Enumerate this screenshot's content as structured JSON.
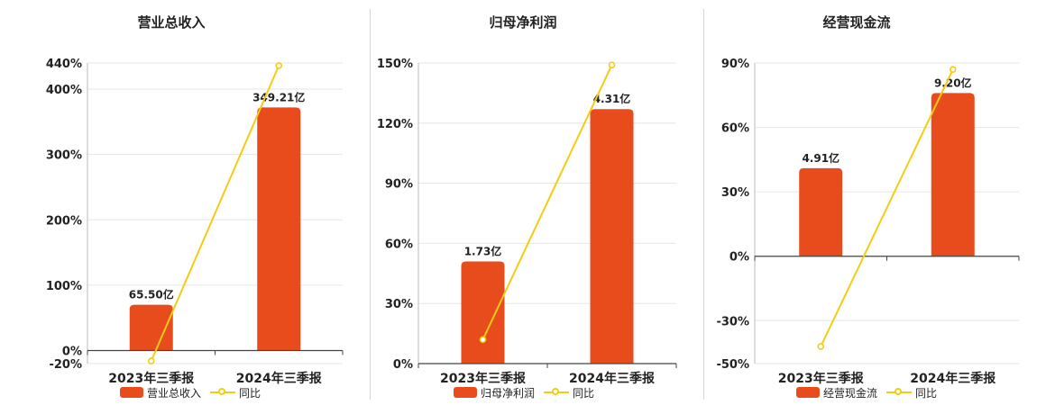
{
  "colors": {
    "bar": "#e84c1c",
    "line": "#f5cc14",
    "grid": "#e6e6e6",
    "axis": "#444444"
  },
  "legend_line_label": "同比",
  "chart_data": [
    {
      "type": "bar",
      "title": "营业总收入",
      "categories": [
        "2023年三季报",
        "2024年三季报"
      ],
      "series": [
        {
          "name": "营业总收入",
          "type": "bar",
          "values": [
            65.5,
            349.21
          ],
          "labels": [
            "65.50亿",
            "349.21亿"
          ]
        },
        {
          "name": "同比",
          "type": "line",
          "values": [
            -16,
            436
          ]
        }
      ],
      "ylim": [
        -20,
        440
      ],
      "yticks": [
        -20,
        0,
        100,
        200,
        300,
        400,
        440
      ],
      "ytick_labels": [
        "-20%",
        "0%",
        "100%",
        "200%",
        "300%",
        "400%",
        "440%"
      ],
      "bar_values_on_axis": [
        70,
        372
      ]
    },
    {
      "type": "bar",
      "title": "归母净利润",
      "categories": [
        "2023年三季报",
        "2024年三季报"
      ],
      "series": [
        {
          "name": "归母净利润",
          "type": "bar",
          "values": [
            1.73,
            4.31
          ],
          "labels": [
            "1.73亿",
            "4.31亿"
          ]
        },
        {
          "name": "同比",
          "type": "line",
          "values": [
            12,
            149
          ]
        }
      ],
      "ylim": [
        0,
        150
      ],
      "yticks": [
        0,
        30,
        60,
        90,
        120,
        150
      ],
      "ytick_labels": [
        "0%",
        "30%",
        "60%",
        "90%",
        "120%",
        "150%"
      ],
      "bar_values_on_axis": [
        51,
        127
      ]
    },
    {
      "type": "bar",
      "title": "经营现金流",
      "categories": [
        "2023年三季报",
        "2024年三季报"
      ],
      "series": [
        {
          "name": "经营现金流",
          "type": "bar",
          "values": [
            4.91,
            9.2
          ],
          "labels": [
            "4.91亿",
            "9.20亿"
          ]
        },
        {
          "name": "同比",
          "type": "line",
          "values": [
            -42,
            87
          ]
        }
      ],
      "ylim": [
        -50,
        90
      ],
      "yticks": [
        -50,
        -30,
        0,
        30,
        60,
        90
      ],
      "ytick_labels": [
        "-50%",
        "-30%",
        "0%",
        "30%",
        "60%",
        "90%"
      ],
      "bar_values_on_axis": [
        41,
        76
      ]
    }
  ]
}
